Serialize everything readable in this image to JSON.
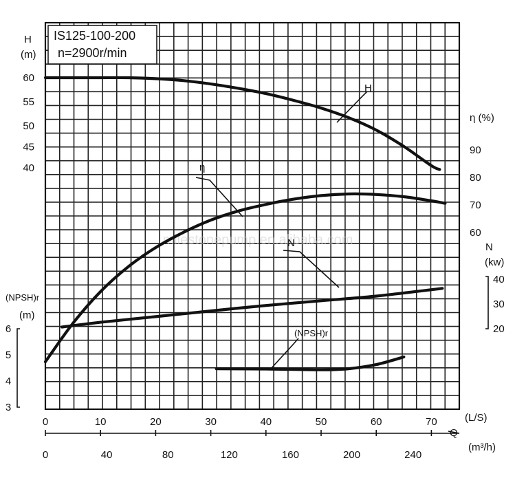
{
  "chart_data": {
    "type": "line",
    "title": "IS125-100-200",
    "subtitle": "n=2900r/min",
    "watermark": "milestonepump.en.alibaba.com",
    "x_primary": {
      "label": "(L/S)",
      "symbol": "Q",
      "ticks": [
        0,
        10,
        20,
        30,
        40,
        50,
        60,
        70
      ],
      "range": [
        0,
        75
      ]
    },
    "x_secondary": {
      "label": "(m³/h)",
      "ticks": [
        0,
        40,
        80,
        120,
        160,
        200,
        240
      ]
    },
    "axes": {
      "H": {
        "label_line1": "H",
        "label_line2": "(m)",
        "ticks": [
          60,
          55,
          50,
          45,
          40
        ]
      },
      "eta": {
        "label": "η (%)",
        "ticks": [
          90,
          80,
          70,
          60
        ]
      },
      "N": {
        "label_line1": "N",
        "label_line2": "(kw)",
        "ticks": [
          40,
          30,
          20
        ]
      },
      "NPSH": {
        "label_line1": "(NPSH)r",
        "label_line2": "(m)",
        "ticks": [
          6,
          5,
          4,
          3
        ]
      }
    },
    "series": [
      {
        "name": "H",
        "axis": "H",
        "x": [
          0,
          5,
          10,
          15,
          20,
          25,
          30,
          35,
          40,
          45,
          50,
          55,
          60,
          65,
          70,
          71.5
        ],
        "values": [
          60,
          60,
          60,
          60,
          59.8,
          59.4,
          58.7,
          57.8,
          56.7,
          55.3,
          53.7,
          51.7,
          49,
          45.1,
          40.5,
          39.6
        ]
      },
      {
        "name": "η",
        "axis": "eta",
        "x": [
          0,
          5,
          10,
          15,
          20,
          25,
          30,
          35,
          40,
          45,
          50,
          55,
          60,
          65,
          70,
          72.5
        ],
        "values": [
          13,
          27,
          38.5,
          47.5,
          54.5,
          60,
          64.5,
          67.8,
          70.2,
          72.1,
          73.4,
          74,
          73.8,
          73,
          71.5,
          70.6
        ]
      },
      {
        "name": "N",
        "axis": "N",
        "x": [
          3,
          10,
          20,
          30,
          40,
          50,
          60,
          72
        ],
        "values": [
          20.7,
          22.6,
          24.9,
          27.2,
          29.4,
          31.3,
          33.2,
          36.3
        ]
      },
      {
        "name": "(NPSH)r",
        "axis": "NPSH",
        "x": [
          31,
          40,
          50,
          55,
          60,
          65
        ],
        "values": [
          4.47,
          4.46,
          4.43,
          4.47,
          4.63,
          4.92
        ]
      }
    ],
    "curve_labels": [
      "H",
      "η",
      "N",
      "(NPSH)r"
    ],
    "grid": true
  }
}
